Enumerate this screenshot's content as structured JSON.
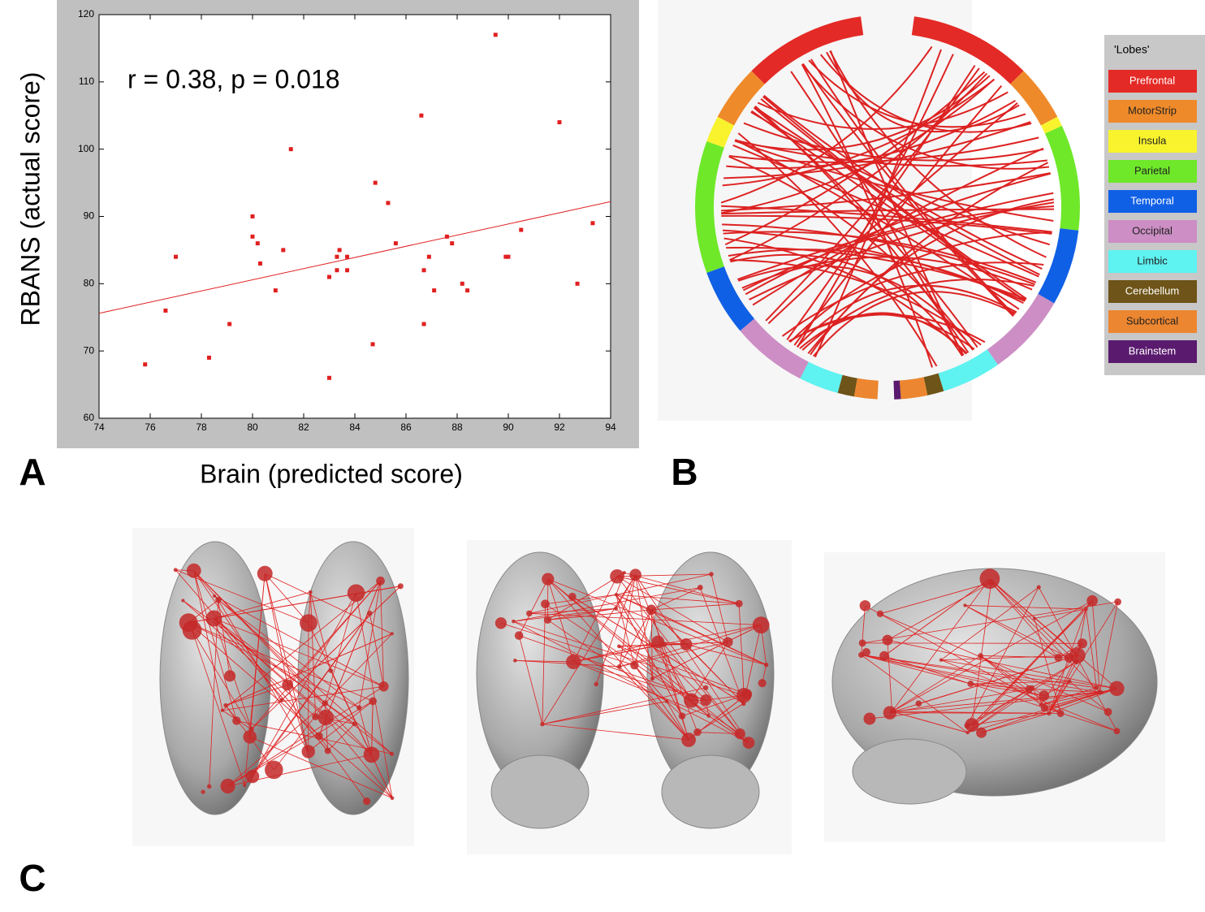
{
  "chart_data": {
    "type": "scatter",
    "annotation": "r = 0.38, p = 0.018",
    "x_label": "Brain (predicted score)",
    "y_label": "RBANS (actual score)",
    "color": "#e02020",
    "x": [
      75.8,
      76.6,
      77,
      78.3,
      79.1,
      80,
      80,
      80.2,
      80.3,
      80.9,
      81.2,
      81.5,
      83,
      83,
      83.3,
      83.3,
      83.4,
      83.7,
      83.7,
      84.7,
      84.8,
      85.3,
      85.6,
      86.6,
      86.7,
      86.7,
      86.9,
      87.1,
      87.6,
      87.8,
      88.2,
      88.4,
      89.5,
      89.9,
      90,
      90.5,
      92,
      92.7,
      93.3
    ],
    "y": [
      68,
      76,
      84,
      69,
      74,
      87,
      90,
      86,
      83,
      79,
      85,
      100,
      81,
      66,
      84,
      82,
      85,
      84,
      82,
      71,
      95,
      92,
      86,
      105,
      82,
      74,
      84,
      79,
      87,
      86,
      80,
      79,
      117,
      84,
      84,
      88,
      104,
      80,
      89
    ],
    "fit": {
      "x": [
        74,
        94
      ],
      "y": [
        75.6,
        92.2
      ]
    },
    "xlim": [
      74,
      94
    ],
    "xticks": [
      74,
      76,
      78,
      80,
      82,
      84,
      86,
      88,
      90,
      92,
      94
    ],
    "ylim": [
      60,
      120
    ],
    "yticks": [
      60,
      70,
      80,
      90,
      100,
      110,
      120
    ]
  },
  "panel_labels": [
    "A",
    "B",
    "C"
  ],
  "legend": {
    "title": "'Lobes'",
    "items": [
      {
        "name": "Prefrontal",
        "color": "#e42a26"
      },
      {
        "name": "MotorStrip",
        "color": "#ef8a2a"
      },
      {
        "name": "Insula",
        "color": "#f8f32d"
      },
      {
        "name": "Parietal",
        "color": "#6fe82a"
      },
      {
        "name": "Temporal",
        "color": "#1060e6"
      },
      {
        "name": "Occipital",
        "color": "#cc8ec4"
      },
      {
        "name": "Limbic",
        "color": "#5ef2f0"
      },
      {
        "name": "Cerebellum",
        "color": "#6e5418"
      },
      {
        "name": "Subcortical",
        "color": "#ec8630"
      },
      {
        "name": "Brainstem",
        "color": "#5a1a6e"
      }
    ]
  }
}
